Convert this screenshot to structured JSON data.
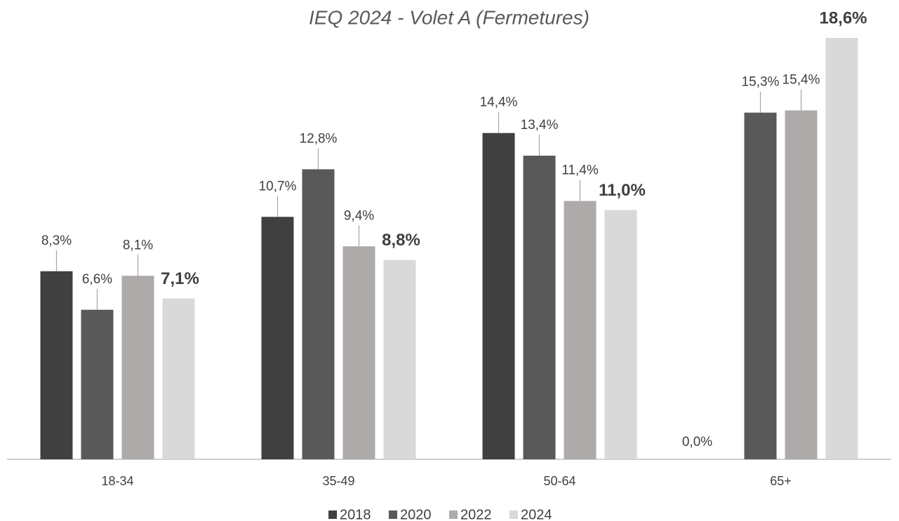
{
  "chart_data": {
    "type": "bar",
    "title": "IEQ 2024 - Volet A (Fermetures)",
    "categories": [
      "18-34",
      "35-49",
      "50-64",
      "65+"
    ],
    "series": [
      {
        "name": "2018",
        "color": "#404040",
        "values": [
          8.3,
          10.7,
          14.4,
          0.0
        ],
        "value_labels": [
          "8,3%",
          "10,7%",
          "14,4%",
          "0,0%"
        ]
      },
      {
        "name": "2020",
        "color": "#595959",
        "values": [
          6.6,
          12.8,
          13.4,
          15.3
        ],
        "value_labels": [
          "6,6%",
          "12,8%",
          "13,4%",
          "15,3%"
        ]
      },
      {
        "name": "2022",
        "color": "#aeaaaa",
        "values": [
          8.1,
          9.4,
          11.4,
          15.4
        ],
        "value_labels": [
          "8,1%",
          "9,4%",
          "11,4%",
          "15,4%"
        ]
      },
      {
        "name": "2024",
        "color": "#d9d9d9",
        "values": [
          7.1,
          8.8,
          11.0,
          18.6
        ],
        "value_labels": [
          "7,1%",
          "8,8%",
          "11,0%",
          "18,6%"
        ]
      }
    ]
  }
}
